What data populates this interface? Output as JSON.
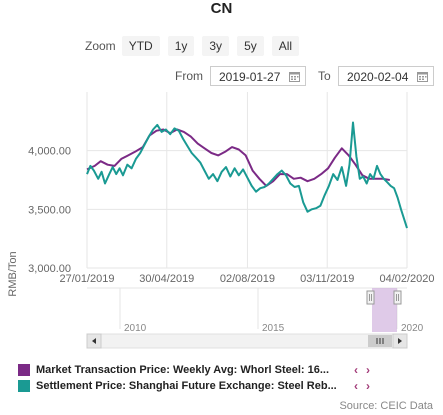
{
  "title": "CN",
  "zoom": {
    "label": "Zoom",
    "buttons": [
      "YTD",
      "1y",
      "3y",
      "5y",
      "All"
    ]
  },
  "range": {
    "from_label": "From",
    "from_value": "2019-01-27",
    "to_label": "To",
    "to_value": "2020-02-04"
  },
  "source": "Source: CEIC Data",
  "legend": [
    {
      "text": "Market Transaction Price: Weekly Avg: Whorl Steel: 16...",
      "color": "#7b2a86"
    },
    {
      "text": "Settlement Price: Shanghai Future Exchange: Steel Reb...",
      "color": "#1a9a93"
    }
  ],
  "navigator": {
    "labels": [
      "2010",
      "2015",
      "2020"
    ]
  },
  "chart_data": {
    "type": "line",
    "ylabel": "RMB/Ton",
    "ylim": [
      3000,
      4500
    ],
    "yticks": [
      "4,000.00",
      "3,500.00",
      "3,000.00"
    ],
    "ytick_values": [
      4000,
      3500,
      3000
    ],
    "xlim": [
      "2019-01-27",
      "2020-02-04"
    ],
    "xticks": [
      "27/01/2019",
      "30/04/2019",
      "02/08/2019",
      "03/11/2019",
      "04/02/2020"
    ],
    "xtick_dates": [
      "2019-01-27",
      "2019-04-30",
      "2019-08-02",
      "2019-11-03",
      "2020-02-04"
    ],
    "grid": true,
    "series": [
      {
        "name": "Market Transaction Price: Weekly Avg: Whorl Steel: 16...",
        "color": "#7b2a86",
        "points": [
          [
            "2019-01-27",
            3840
          ],
          [
            "2019-02-05",
            3870
          ],
          [
            "2019-02-12",
            3910
          ],
          [
            "2019-02-20",
            3880
          ],
          [
            "2019-02-28",
            3870
          ],
          [
            "2019-03-08",
            3930
          ],
          [
            "2019-03-16",
            3960
          ],
          [
            "2019-03-24",
            3990
          ],
          [
            "2019-04-02",
            4030
          ],
          [
            "2019-04-10",
            4130
          ],
          [
            "2019-04-18",
            4170
          ],
          [
            "2019-04-26",
            4180
          ],
          [
            "2019-05-04",
            4150
          ],
          [
            "2019-05-12",
            4180
          ],
          [
            "2019-05-20",
            4160
          ],
          [
            "2019-05-28",
            4120
          ],
          [
            "2019-06-05",
            4060
          ],
          [
            "2019-06-13",
            4020
          ],
          [
            "2019-06-21",
            3980
          ],
          [
            "2019-06-29",
            3960
          ],
          [
            "2019-07-07",
            3990
          ],
          [
            "2019-07-15",
            4030
          ],
          [
            "2019-07-23",
            4010
          ],
          [
            "2019-07-31",
            3960
          ],
          [
            "2019-08-08",
            3830
          ],
          [
            "2019-08-16",
            3760
          ],
          [
            "2019-08-24",
            3700
          ],
          [
            "2019-09-01",
            3740
          ],
          [
            "2019-09-09",
            3800
          ],
          [
            "2019-09-17",
            3800
          ],
          [
            "2019-09-25",
            3760
          ],
          [
            "2019-10-03",
            3770
          ],
          [
            "2019-10-11",
            3740
          ],
          [
            "2019-10-19",
            3760
          ],
          [
            "2019-10-27",
            3800
          ],
          [
            "2019-11-04",
            3850
          ],
          [
            "2019-11-12",
            3940
          ],
          [
            "2019-11-20",
            4020
          ],
          [
            "2019-11-28",
            3960
          ],
          [
            "2019-12-06",
            3880
          ],
          [
            "2019-12-14",
            3790
          ],
          [
            "2019-12-22",
            3760
          ],
          [
            "2019-12-30",
            3760
          ],
          [
            "2020-01-07",
            3760
          ],
          [
            "2020-01-15",
            3750
          ]
        ]
      },
      {
        "name": "Settlement Price: Shanghai Future Exchange: Steel Reb...",
        "color": "#1a9a93",
        "points": [
          [
            "2019-01-27",
            3800
          ],
          [
            "2019-01-31",
            3870
          ],
          [
            "2019-02-04",
            3830
          ],
          [
            "2019-02-09",
            3760
          ],
          [
            "2019-02-13",
            3820
          ],
          [
            "2019-02-17",
            3720
          ],
          [
            "2019-02-22",
            3800
          ],
          [
            "2019-02-26",
            3860
          ],
          [
            "2019-03-02",
            3800
          ],
          [
            "2019-03-06",
            3850
          ],
          [
            "2019-03-10",
            3790
          ],
          [
            "2019-03-15",
            3880
          ],
          [
            "2019-03-20",
            3850
          ],
          [
            "2019-03-25",
            3930
          ],
          [
            "2019-03-30",
            3980
          ],
          [
            "2019-04-04",
            4050
          ],
          [
            "2019-04-09",
            4120
          ],
          [
            "2019-04-14",
            4180
          ],
          [
            "2019-04-19",
            4220
          ],
          [
            "2019-04-24",
            4160
          ],
          [
            "2019-04-29",
            4180
          ],
          [
            "2019-05-04",
            4140
          ],
          [
            "2019-05-09",
            4190
          ],
          [
            "2019-05-14",
            4170
          ],
          [
            "2019-05-19",
            4100
          ],
          [
            "2019-05-24",
            4040
          ],
          [
            "2019-05-29",
            3980
          ],
          [
            "2019-06-03",
            3940
          ],
          [
            "2019-06-08",
            3900
          ],
          [
            "2019-06-13",
            3830
          ],
          [
            "2019-06-18",
            3760
          ],
          [
            "2019-06-23",
            3800
          ],
          [
            "2019-06-28",
            3740
          ],
          [
            "2019-07-03",
            3820
          ],
          [
            "2019-07-08",
            3860
          ],
          [
            "2019-07-13",
            3780
          ],
          [
            "2019-07-18",
            3850
          ],
          [
            "2019-07-23",
            3790
          ],
          [
            "2019-07-28",
            3840
          ],
          [
            "2019-08-02",
            3770
          ],
          [
            "2019-08-07",
            3700
          ],
          [
            "2019-08-12",
            3650
          ],
          [
            "2019-08-17",
            3680
          ],
          [
            "2019-08-22",
            3690
          ],
          [
            "2019-08-27",
            3720
          ],
          [
            "2019-09-01",
            3760
          ],
          [
            "2019-09-06",
            3800
          ],
          [
            "2019-09-11",
            3830
          ],
          [
            "2019-09-16",
            3790
          ],
          [
            "2019-09-21",
            3720
          ],
          [
            "2019-09-26",
            3690
          ],
          [
            "2019-10-01",
            3700
          ],
          [
            "2019-10-06",
            3560
          ],
          [
            "2019-10-11",
            3480
          ],
          [
            "2019-10-16",
            3500
          ],
          [
            "2019-10-21",
            3510
          ],
          [
            "2019-10-26",
            3530
          ],
          [
            "2019-10-31",
            3620
          ],
          [
            "2019-11-05",
            3700
          ],
          [
            "2019-11-10",
            3800
          ],
          [
            "2019-11-15",
            3750
          ],
          [
            "2019-11-20",
            3860
          ],
          [
            "2019-11-25",
            3700
          ],
          [
            "2019-11-29",
            3880
          ],
          [
            "2019-12-03",
            4240
          ],
          [
            "2019-12-07",
            3950
          ],
          [
            "2019-12-11",
            3760
          ],
          [
            "2019-12-15",
            3780
          ],
          [
            "2019-12-19",
            3720
          ],
          [
            "2019-12-23",
            3800
          ],
          [
            "2019-12-27",
            3760
          ],
          [
            "2019-12-31",
            3870
          ],
          [
            "2020-01-04",
            3800
          ],
          [
            "2020-01-08",
            3760
          ],
          [
            "2020-01-12",
            3730
          ],
          [
            "2020-01-16",
            3700
          ],
          [
            "2020-01-20",
            3680
          ],
          [
            "2020-01-24",
            3600
          ],
          [
            "2020-01-28",
            3500
          ],
          [
            "2020-02-04",
            3340
          ]
        ]
      }
    ]
  }
}
